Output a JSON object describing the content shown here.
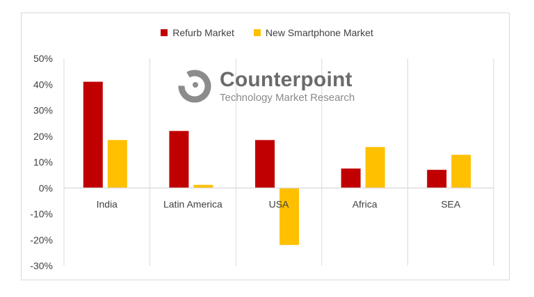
{
  "chart_data": {
    "type": "bar",
    "categories": [
      "India",
      "Latin America",
      "USA",
      "Africa",
      "SEA"
    ],
    "series": [
      {
        "name": "Refurb Market",
        "color": "#c00000",
        "values": [
          41,
          22,
          18.5,
          7.5,
          7
        ]
      },
      {
        "name": "New Smartphone Market",
        "color": "#ffc000",
        "values": [
          18.5,
          1.2,
          -22,
          15.8,
          12.8
        ]
      }
    ],
    "y_ticks": [
      "50%",
      "40%",
      "30%",
      "20%",
      "10%",
      "0%",
      "-10%",
      "-20%",
      "-30%"
    ],
    "ylim": [
      -30,
      50
    ],
    "y_unit": "%",
    "legend_position": "top",
    "grid": "vertical category separators"
  },
  "watermark": {
    "brand": "Counterpoint",
    "tagline": "Technology Market Research"
  }
}
